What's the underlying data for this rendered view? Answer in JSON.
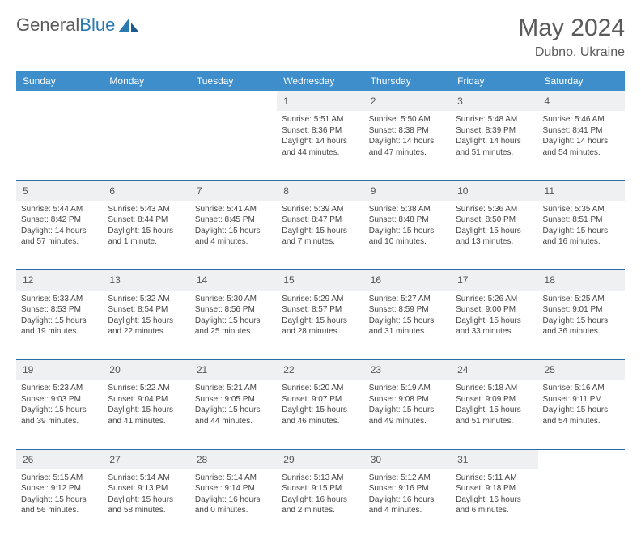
{
  "brand": {
    "part1": "General",
    "part2": "Blue"
  },
  "title": "May 2024",
  "location": "Dubno, Ukraine",
  "colors": {
    "header_bg": "#3f8ecc",
    "header_text": "#ffffff",
    "border": "#2a6ca8",
    "daynum_bg": "#eef0f2",
    "text": "#444444",
    "title_text": "#5a5a5a",
    "brand_blue": "#2a7ab0"
  },
  "weekdays": [
    "Sunday",
    "Monday",
    "Tuesday",
    "Wednesday",
    "Thursday",
    "Friday",
    "Saturday"
  ],
  "weeks": [
    [
      null,
      null,
      null,
      {
        "n": "1",
        "sr": "Sunrise: 5:51 AM",
        "ss": "Sunset: 8:36 PM",
        "dl": "Daylight: 14 hours and 44 minutes."
      },
      {
        "n": "2",
        "sr": "Sunrise: 5:50 AM",
        "ss": "Sunset: 8:38 PM",
        "dl": "Daylight: 14 hours and 47 minutes."
      },
      {
        "n": "3",
        "sr": "Sunrise: 5:48 AM",
        "ss": "Sunset: 8:39 PM",
        "dl": "Daylight: 14 hours and 51 minutes."
      },
      {
        "n": "4",
        "sr": "Sunrise: 5:46 AM",
        "ss": "Sunset: 8:41 PM",
        "dl": "Daylight: 14 hours and 54 minutes."
      }
    ],
    [
      {
        "n": "5",
        "sr": "Sunrise: 5:44 AM",
        "ss": "Sunset: 8:42 PM",
        "dl": "Daylight: 14 hours and 57 minutes."
      },
      {
        "n": "6",
        "sr": "Sunrise: 5:43 AM",
        "ss": "Sunset: 8:44 PM",
        "dl": "Daylight: 15 hours and 1 minute."
      },
      {
        "n": "7",
        "sr": "Sunrise: 5:41 AM",
        "ss": "Sunset: 8:45 PM",
        "dl": "Daylight: 15 hours and 4 minutes."
      },
      {
        "n": "8",
        "sr": "Sunrise: 5:39 AM",
        "ss": "Sunset: 8:47 PM",
        "dl": "Daylight: 15 hours and 7 minutes."
      },
      {
        "n": "9",
        "sr": "Sunrise: 5:38 AM",
        "ss": "Sunset: 8:48 PM",
        "dl": "Daylight: 15 hours and 10 minutes."
      },
      {
        "n": "10",
        "sr": "Sunrise: 5:36 AM",
        "ss": "Sunset: 8:50 PM",
        "dl": "Daylight: 15 hours and 13 minutes."
      },
      {
        "n": "11",
        "sr": "Sunrise: 5:35 AM",
        "ss": "Sunset: 8:51 PM",
        "dl": "Daylight: 15 hours and 16 minutes."
      }
    ],
    [
      {
        "n": "12",
        "sr": "Sunrise: 5:33 AM",
        "ss": "Sunset: 8:53 PM",
        "dl": "Daylight: 15 hours and 19 minutes."
      },
      {
        "n": "13",
        "sr": "Sunrise: 5:32 AM",
        "ss": "Sunset: 8:54 PM",
        "dl": "Daylight: 15 hours and 22 minutes."
      },
      {
        "n": "14",
        "sr": "Sunrise: 5:30 AM",
        "ss": "Sunset: 8:56 PM",
        "dl": "Daylight: 15 hours and 25 minutes."
      },
      {
        "n": "15",
        "sr": "Sunrise: 5:29 AM",
        "ss": "Sunset: 8:57 PM",
        "dl": "Daylight: 15 hours and 28 minutes."
      },
      {
        "n": "16",
        "sr": "Sunrise: 5:27 AM",
        "ss": "Sunset: 8:59 PM",
        "dl": "Daylight: 15 hours and 31 minutes."
      },
      {
        "n": "17",
        "sr": "Sunrise: 5:26 AM",
        "ss": "Sunset: 9:00 PM",
        "dl": "Daylight: 15 hours and 33 minutes."
      },
      {
        "n": "18",
        "sr": "Sunrise: 5:25 AM",
        "ss": "Sunset: 9:01 PM",
        "dl": "Daylight: 15 hours and 36 minutes."
      }
    ],
    [
      {
        "n": "19",
        "sr": "Sunrise: 5:23 AM",
        "ss": "Sunset: 9:03 PM",
        "dl": "Daylight: 15 hours and 39 minutes."
      },
      {
        "n": "20",
        "sr": "Sunrise: 5:22 AM",
        "ss": "Sunset: 9:04 PM",
        "dl": "Daylight: 15 hours and 41 minutes."
      },
      {
        "n": "21",
        "sr": "Sunrise: 5:21 AM",
        "ss": "Sunset: 9:05 PM",
        "dl": "Daylight: 15 hours and 44 minutes."
      },
      {
        "n": "22",
        "sr": "Sunrise: 5:20 AM",
        "ss": "Sunset: 9:07 PM",
        "dl": "Daylight: 15 hours and 46 minutes."
      },
      {
        "n": "23",
        "sr": "Sunrise: 5:19 AM",
        "ss": "Sunset: 9:08 PM",
        "dl": "Daylight: 15 hours and 49 minutes."
      },
      {
        "n": "24",
        "sr": "Sunrise: 5:18 AM",
        "ss": "Sunset: 9:09 PM",
        "dl": "Daylight: 15 hours and 51 minutes."
      },
      {
        "n": "25",
        "sr": "Sunrise: 5:16 AM",
        "ss": "Sunset: 9:11 PM",
        "dl": "Daylight: 15 hours and 54 minutes."
      }
    ],
    [
      {
        "n": "26",
        "sr": "Sunrise: 5:15 AM",
        "ss": "Sunset: 9:12 PM",
        "dl": "Daylight: 15 hours and 56 minutes."
      },
      {
        "n": "27",
        "sr": "Sunrise: 5:14 AM",
        "ss": "Sunset: 9:13 PM",
        "dl": "Daylight: 15 hours and 58 minutes."
      },
      {
        "n": "28",
        "sr": "Sunrise: 5:14 AM",
        "ss": "Sunset: 9:14 PM",
        "dl": "Daylight: 16 hours and 0 minutes."
      },
      {
        "n": "29",
        "sr": "Sunrise: 5:13 AM",
        "ss": "Sunset: 9:15 PM",
        "dl": "Daylight: 16 hours and 2 minutes."
      },
      {
        "n": "30",
        "sr": "Sunrise: 5:12 AM",
        "ss": "Sunset: 9:16 PM",
        "dl": "Daylight: 16 hours and 4 minutes."
      },
      {
        "n": "31",
        "sr": "Sunrise: 5:11 AM",
        "ss": "Sunset: 9:18 PM",
        "dl": "Daylight: 16 hours and 6 minutes."
      },
      null
    ]
  ]
}
